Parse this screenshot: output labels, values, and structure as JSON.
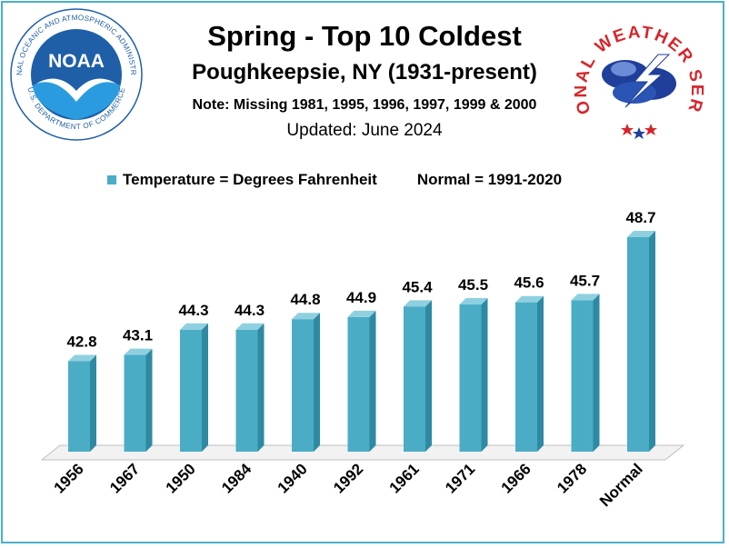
{
  "title": "Spring - Top  10 Coldest",
  "subtitle": "Poughkeepsie, NY (1931-present)",
  "note": "Note: Missing  1981, 1995,  1996, 1997, 1999 & 2000",
  "updated": "Updated: June 2024",
  "legend": {
    "series": "Temperature = Degrees Fahrenheit",
    "normal": "Normal = 1991-2020"
  },
  "logos": {
    "noaa": {
      "center": "NOAA",
      "ring_top": "NATIONAL OCEANIC AND ATMOSPHERIC ADMINISTRATION",
      "ring_bottom": "U.S. DEPARTMENT OF COMMERCE"
    },
    "nws": {
      "ring": "NATIONAL WEATHER SERVICE"
    }
  },
  "colors": {
    "bar": "#4bacc6",
    "bar_side": "#2e8aa3",
    "bar_top": "#8fd0e0",
    "frame": "#4bb0c8",
    "noaa_blue": "#1f5fa8",
    "nws_red": "#d7262b"
  },
  "chart_data": {
    "type": "bar",
    "categories": [
      "1956",
      "1967",
      "1950",
      "1984",
      "1940",
      "1992",
      "1961",
      "1971",
      "1966",
      "1978",
      "Normal"
    ],
    "values": [
      42.8,
      43.1,
      44.3,
      44.3,
      44.8,
      44.9,
      45.4,
      45.5,
      45.6,
      45.7,
      48.7
    ],
    "data_labels": [
      "42.8",
      "43.1",
      "44.3",
      "44.3",
      "44.8",
      "44.9",
      "45.4",
      "45.5",
      "45.6",
      "45.7",
      "48.7"
    ],
    "ylim": [
      38.5,
      48.7
    ],
    "grid": false,
    "legend_placement": "top",
    "three_d": true
  }
}
